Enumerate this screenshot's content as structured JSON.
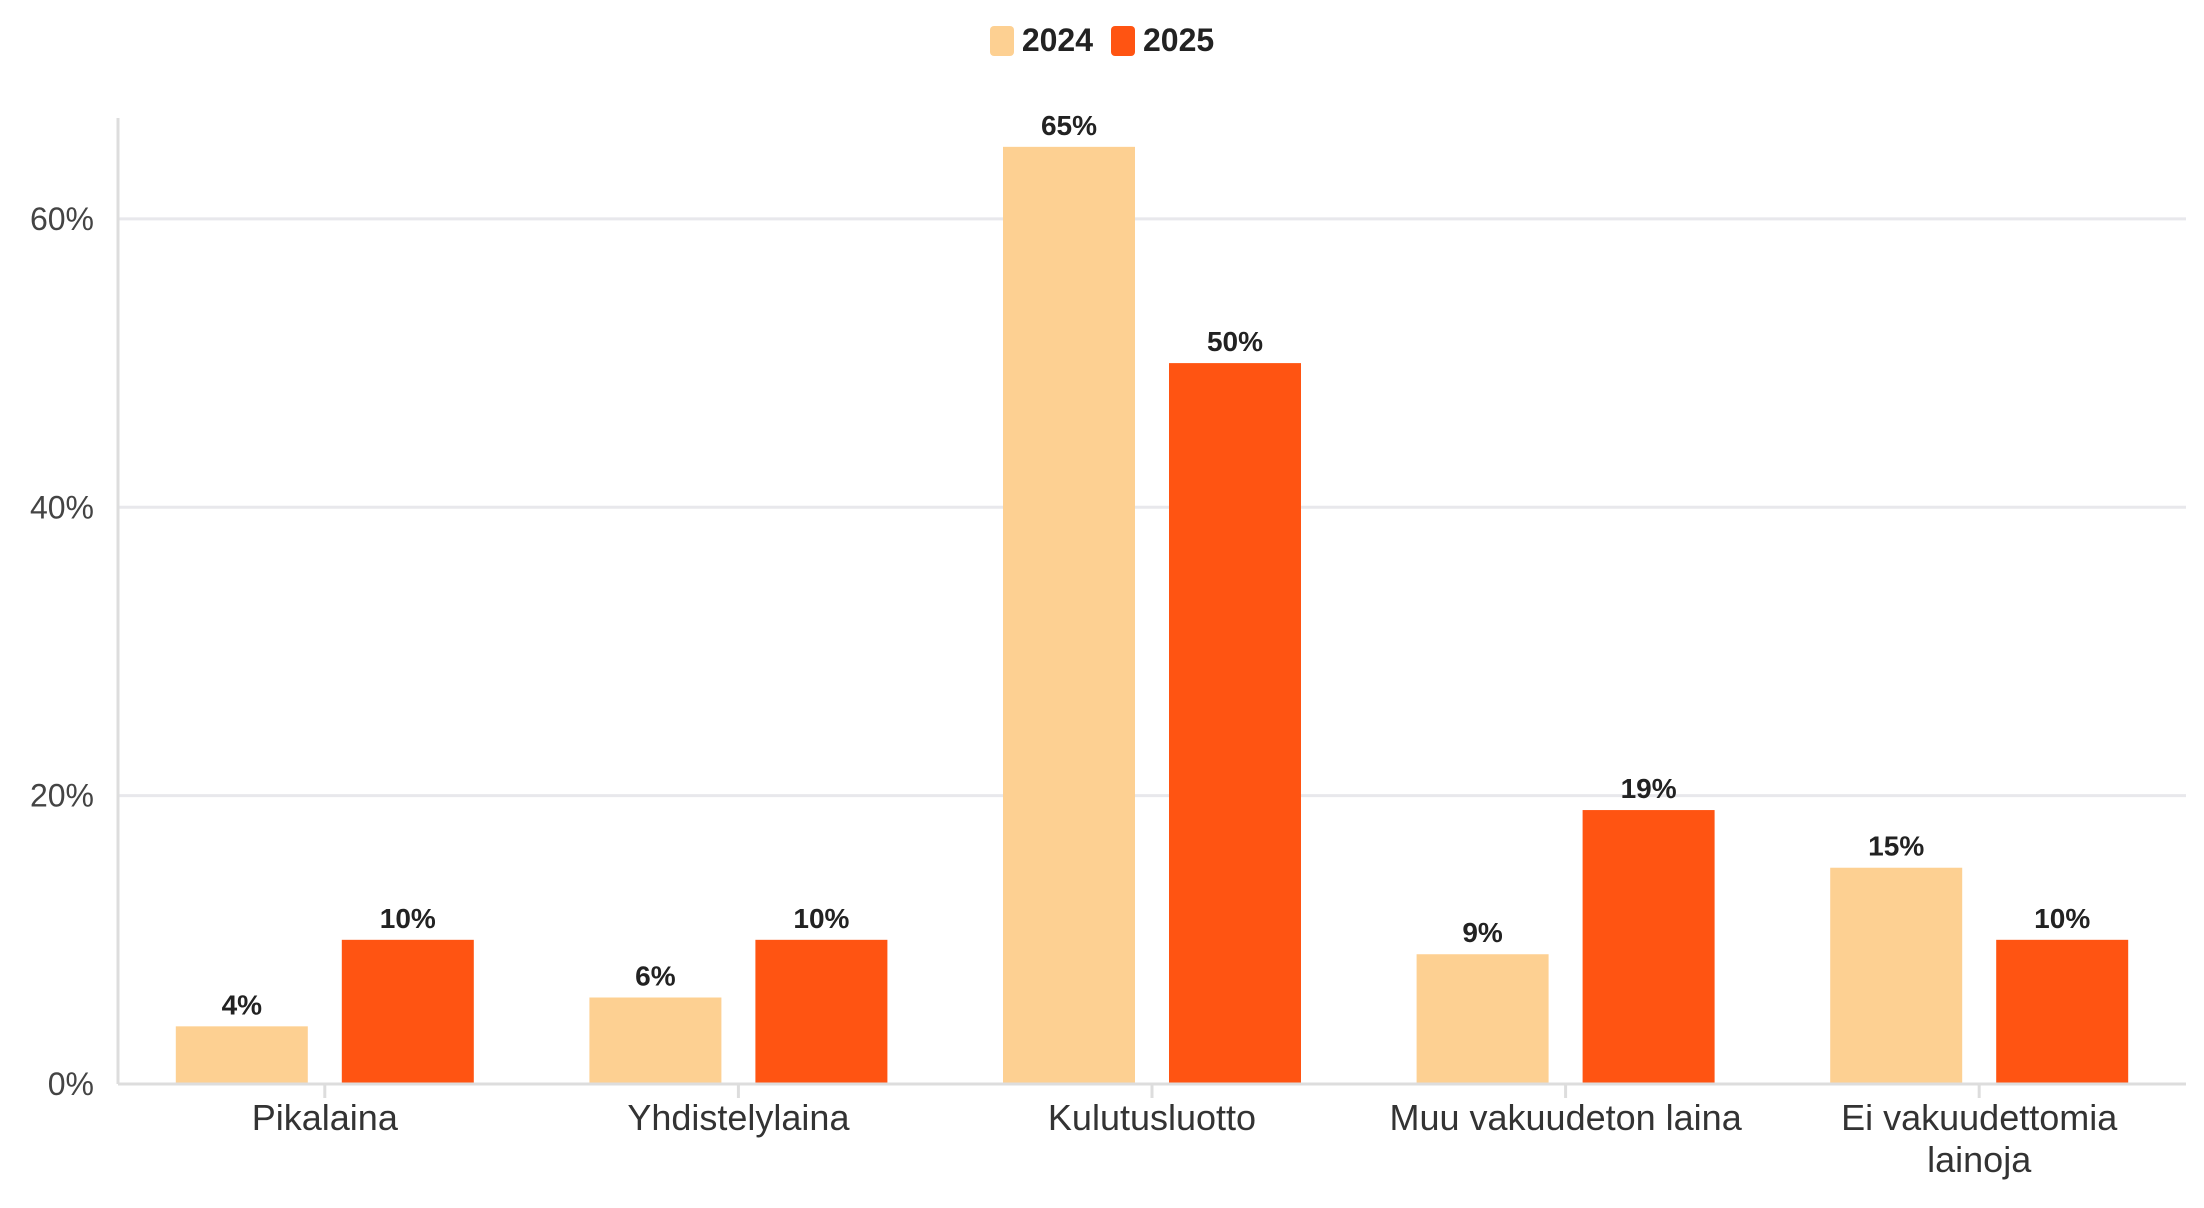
{
  "chart_data": {
    "type": "bar",
    "categories": [
      "Pikalaina",
      "Yhdistelylaina",
      "Kulutusluotto",
      "Muu vakuudeton laina",
      "Ei vakuudettomia lainoja"
    ],
    "series": [
      {
        "name": "2024",
        "values": [
          4,
          6,
          65,
          9,
          15
        ],
        "color": "#FDD092",
        "labels": [
          "4%",
          "6%",
          "65%",
          "9%",
          "15%"
        ]
      },
      {
        "name": "2025",
        "values": [
          10,
          10,
          50,
          19,
          10
        ],
        "color": "#FF5412",
        "labels": [
          "10%",
          "10%",
          "50%",
          "19%",
          "10%"
        ]
      }
    ],
    "yticks": [
      0,
      20,
      40,
      60
    ],
    "ytick_labels": [
      "0%",
      "20%",
      "40%",
      "60%"
    ],
    "ylim": [
      0,
      67
    ],
    "xlabel": "",
    "ylabel": "",
    "grid": true,
    "legend_position": "top-center",
    "gridline_color": "#E8E8EC",
    "axis_color": "#DDDDDD"
  }
}
